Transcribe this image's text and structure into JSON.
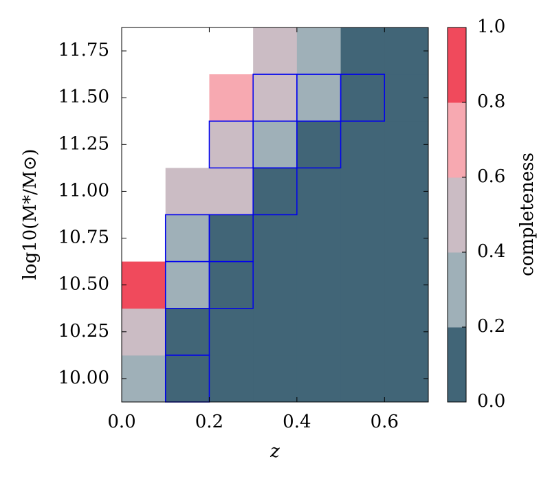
{
  "chart_data": {
    "type": "heatmap",
    "xlabel": "z",
    "ylabel": "log10(M*/M⊙)",
    "x_edges": [
      0,
      0.1,
      0.2,
      0.3,
      0.4,
      0.5,
      0.6,
      0.7
    ],
    "y_edges": [
      9.875,
      10.125,
      10.375,
      10.625,
      10.875,
      11.125,
      11.375,
      11.625,
      11.875
    ],
    "values": [
      [
        0.3,
        0.1,
        0.1,
        0.1,
        0.1,
        0.1,
        0.1
      ],
      [
        0.5,
        0.1,
        0.1,
        0.1,
        0.1,
        0.1,
        0.1
      ],
      [
        0.9,
        0.3,
        0.1,
        0.1,
        0.1,
        0.1,
        0.1
      ],
      [
        null,
        0.3,
        0.1,
        0.1,
        0.1,
        0.1,
        0.1
      ],
      [
        null,
        0.5,
        0.5,
        0.1,
        0.1,
        0.1,
        0.1
      ],
      [
        null,
        null,
        0.5,
        0.3,
        0.1,
        0.1,
        0.1
      ],
      [
        null,
        null,
        0.7,
        0.5,
        0.3,
        0.1,
        0.1
      ],
      [
        null,
        null,
        null,
        0.5,
        0.3,
        0.1,
        0.1
      ]
    ],
    "highlighted": [
      [
        false,
        true,
        false,
        false,
        false,
        false,
        false
      ],
      [
        false,
        true,
        false,
        false,
        false,
        false,
        false
      ],
      [
        false,
        true,
        true,
        false,
        false,
        false,
        false
      ],
      [
        false,
        true,
        true,
        false,
        false,
        false,
        false
      ],
      [
        false,
        false,
        false,
        true,
        false,
        false,
        false
      ],
      [
        false,
        false,
        true,
        true,
        true,
        false,
        false
      ],
      [
        false,
        false,
        false,
        true,
        true,
        true,
        false
      ],
      [
        false,
        false,
        false,
        false,
        false,
        false,
        false
      ]
    ],
    "highlight_color": "#0000ee",
    "xlim": [
      0,
      0.7
    ],
    "ylim": [
      9.875,
      11.875
    ],
    "xticks": [
      {
        "value": 0,
        "label": "0.0"
      },
      {
        "value": 0.2,
        "label": "0.2"
      },
      {
        "value": 0.4,
        "label": "0.4"
      },
      {
        "value": 0.6,
        "label": "0.6"
      }
    ],
    "yticks": [
      {
        "value": 10,
        "label": "10.00"
      },
      {
        "value": 10.25,
        "label": "10.25"
      },
      {
        "value": 10.5,
        "label": "10.50"
      },
      {
        "value": 10.75,
        "label": "10.75"
      },
      {
        "value": 11,
        "label": "11.00"
      },
      {
        "value": 11.25,
        "label": "11.25"
      },
      {
        "value": 11.5,
        "label": "11.50"
      },
      {
        "value": 11.75,
        "label": "11.75"
      }
    ],
    "colorbar": {
      "label": "completeness",
      "levels": [
        0,
        0.2,
        0.4,
        0.6,
        0.8,
        1.0
      ],
      "colors": [
        "#416577",
        "#9fb0b8",
        "#cbbcc4",
        "#f7a9b1",
        "#f04a5c"
      ],
      "lim": [
        0,
        1.0
      ],
      "ticks": [
        {
          "value": 0,
          "label": "0.0"
        },
        {
          "value": 0.2,
          "label": "0.2"
        },
        {
          "value": 0.4,
          "label": "0.4"
        },
        {
          "value": 0.6,
          "label": "0.6"
        },
        {
          "value": 0.8,
          "label": "0.8"
        },
        {
          "value": 1.0,
          "label": "1.0"
        }
      ]
    }
  }
}
